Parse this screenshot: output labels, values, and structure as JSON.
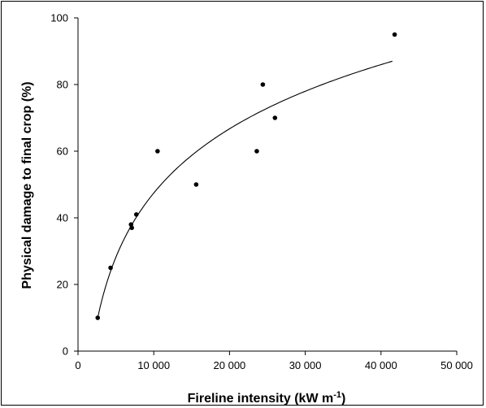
{
  "chart_data": {
    "type": "scatter",
    "title": "",
    "xlabel": "Fireline intensity (kW m",
    "xlabel_sup": "-1",
    "xlabel_end": ")",
    "ylabel": "Physical damage to final crop (%)",
    "xlim": [
      0,
      50000
    ],
    "ylim": [
      0,
      100
    ],
    "x_ticks": [
      0,
      10000,
      20000,
      30000,
      40000,
      50000
    ],
    "x_tick_labels": [
      "0",
      "10 000",
      "20 000",
      "30 000",
      "40 000",
      "50 000"
    ],
    "y_ticks": [
      0,
      20,
      40,
      60,
      80,
      100
    ],
    "y_tick_labels": [
      "0",
      "20",
      "40",
      "60",
      "80",
      "100"
    ],
    "grid": false,
    "legend": "none",
    "points": [
      {
        "x": 2600,
        "y": 10
      },
      {
        "x": 4300,
        "y": 25
      },
      {
        "x": 7000,
        "y": 38
      },
      {
        "x": 7100,
        "y": 37
      },
      {
        "x": 7700,
        "y": 41
      },
      {
        "x": 10500,
        "y": 60
      },
      {
        "x": 15600,
        "y": 50
      },
      {
        "x": 23600,
        "y": 60
      },
      {
        "x": 24400,
        "y": 80
      },
      {
        "x": 26000,
        "y": 70
      },
      {
        "x": 41800,
        "y": 95
      }
    ],
    "trendline": {
      "type": "logarithmic",
      "x_range": [
        2600,
        41500
      ],
      "points": [
        {
          "x": 2600,
          "y": 10
        },
        {
          "x": 41500,
          "y": 87
        }
      ]
    },
    "colors": {
      "marker": "#000000",
      "line": "#000000"
    }
  }
}
